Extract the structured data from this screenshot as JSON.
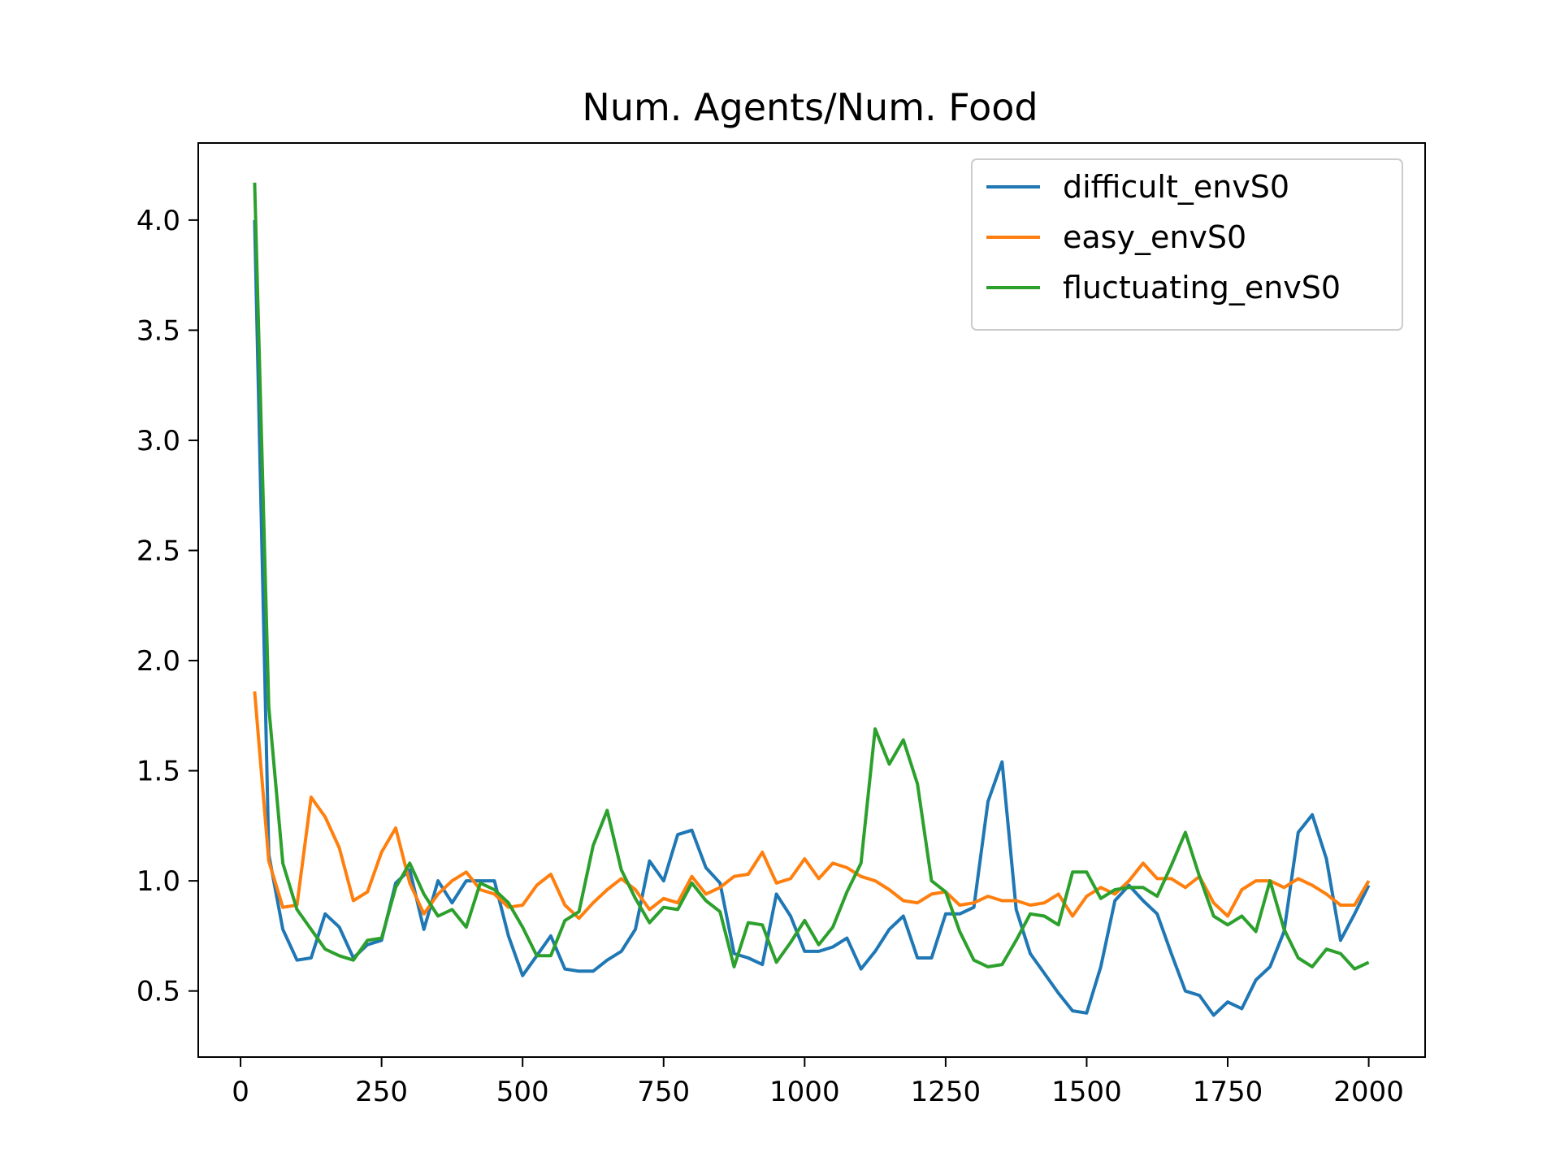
{
  "chart_data": {
    "type": "line",
    "title": "Num. Agents/Num. Food",
    "xlabel": "",
    "ylabel": "",
    "xlim": [
      -75,
      2100
    ],
    "ylim": [
      0.2,
      4.35
    ],
    "xticks": [
      0,
      250,
      500,
      750,
      1000,
      1250,
      1500,
      1750,
      2000
    ],
    "xtick_labels": [
      "0",
      "250",
      "500",
      "750",
      "1000",
      "1250",
      "1500",
      "1750",
      "2000"
    ],
    "yticks": [
      0.5,
      1.0,
      1.5,
      2.0,
      2.5,
      3.0,
      3.5,
      4.0
    ],
    "ytick_labels": [
      "0.5",
      "1.0",
      "1.5",
      "2.0",
      "2.5",
      "3.0",
      "3.5",
      "4.0"
    ],
    "grid": false,
    "legend_position": "top-right",
    "x": [
      25,
      50,
      75,
      100,
      125,
      150,
      175,
      200,
      225,
      250,
      275,
      300,
      325,
      350,
      375,
      400,
      425,
      450,
      475,
      500,
      525,
      550,
      575,
      600,
      625,
      650,
      675,
      700,
      725,
      750,
      775,
      800,
      825,
      850,
      875,
      900,
      925,
      950,
      975,
      1000,
      1025,
      1050,
      1075,
      1100,
      1125,
      1150,
      1175,
      1200,
      1225,
      1250,
      1275,
      1300,
      1325,
      1350,
      1375,
      1400,
      1425,
      1450,
      1475,
      1500,
      1525,
      1550,
      1575,
      1600,
      1625,
      1650,
      1675,
      1700,
      1725,
      1750,
      1775,
      1800,
      1825,
      1850,
      1875,
      1900,
      1925,
      1950,
      1975,
      2000
    ],
    "series": [
      {
        "name": "difficult_envS0",
        "color": "#1f77b4",
        "values": [
          4.0,
          1.12,
          0.78,
          0.64,
          0.65,
          0.85,
          0.79,
          0.65,
          0.71,
          0.73,
          0.99,
          1.05,
          0.78,
          1.0,
          0.9,
          1.0,
          1.0,
          1.0,
          0.75,
          0.57,
          0.66,
          0.75,
          0.6,
          0.59,
          0.59,
          0.64,
          0.68,
          0.78,
          1.09,
          1.0,
          1.21,
          1.23,
          1.06,
          0.99,
          0.67,
          0.65,
          0.62,
          0.94,
          0.84,
          0.68,
          0.68,
          0.7,
          0.74,
          0.6,
          0.68,
          0.78,
          0.84,
          0.65,
          0.65,
          0.85,
          0.85,
          0.88,
          1.36,
          1.54,
          0.87,
          0.67,
          0.58,
          0.49,
          0.41,
          0.4,
          0.61,
          0.91,
          0.98,
          0.91,
          0.85,
          0.67,
          0.5,
          0.48,
          0.39,
          0.45,
          0.42,
          0.55,
          0.61,
          0.77,
          1.22,
          1.3,
          1.1,
          0.73,
          0.85,
          0.98
        ]
      },
      {
        "name": "easy_envS0",
        "color": "#ff7f0e",
        "values": [
          1.86,
          1.09,
          0.88,
          0.89,
          1.38,
          1.29,
          1.15,
          0.91,
          0.95,
          1.13,
          1.24,
          0.99,
          0.85,
          0.94,
          1.0,
          1.04,
          0.96,
          0.94,
          0.88,
          0.89,
          0.98,
          1.03,
          0.89,
          0.83,
          0.9,
          0.96,
          1.01,
          0.96,
          0.87,
          0.92,
          0.9,
          1.02,
          0.94,
          0.97,
          1.02,
          1.03,
          1.13,
          0.99,
          1.01,
          1.1,
          1.01,
          1.08,
          1.06,
          1.02,
          1.0,
          0.96,
          0.91,
          0.9,
          0.94,
          0.95,
          0.89,
          0.9,
          0.93,
          0.91,
          0.91,
          0.89,
          0.9,
          0.94,
          0.84,
          0.93,
          0.97,
          0.94,
          1.0,
          1.08,
          1.01,
          1.01,
          0.97,
          1.02,
          0.9,
          0.84,
          0.96,
          1.0,
          1.0,
          0.97,
          1.01,
          0.98,
          0.94,
          0.89,
          0.89,
          1.0
        ]
      },
      {
        "name": "fluctuating_envS0",
        "color": "#2ca02c",
        "values": [
          4.17,
          1.79,
          1.08,
          0.87,
          0.78,
          0.69,
          0.66,
          0.64,
          0.73,
          0.74,
          0.97,
          1.08,
          0.94,
          0.84,
          0.87,
          0.79,
          0.99,
          0.96,
          0.9,
          0.79,
          0.66,
          0.66,
          0.82,
          0.86,
          1.16,
          1.32,
          1.05,
          0.92,
          0.81,
          0.88,
          0.87,
          0.99,
          0.91,
          0.86,
          0.61,
          0.81,
          0.8,
          0.63,
          0.72,
          0.82,
          0.71,
          0.79,
          0.95,
          1.08,
          1.69,
          1.53,
          1.64,
          1.44,
          1.0,
          0.95,
          0.77,
          0.64,
          0.61,
          0.62,
          0.73,
          0.85,
          0.84,
          0.8,
          1.04,
          1.04,
          0.92,
          0.96,
          0.97,
          0.97,
          0.93,
          1.07,
          1.22,
          1.02,
          0.84,
          0.8,
          0.84,
          0.77,
          1.0,
          0.78,
          0.65,
          0.61,
          0.69,
          0.67,
          0.6,
          0.63
        ]
      }
    ]
  }
}
